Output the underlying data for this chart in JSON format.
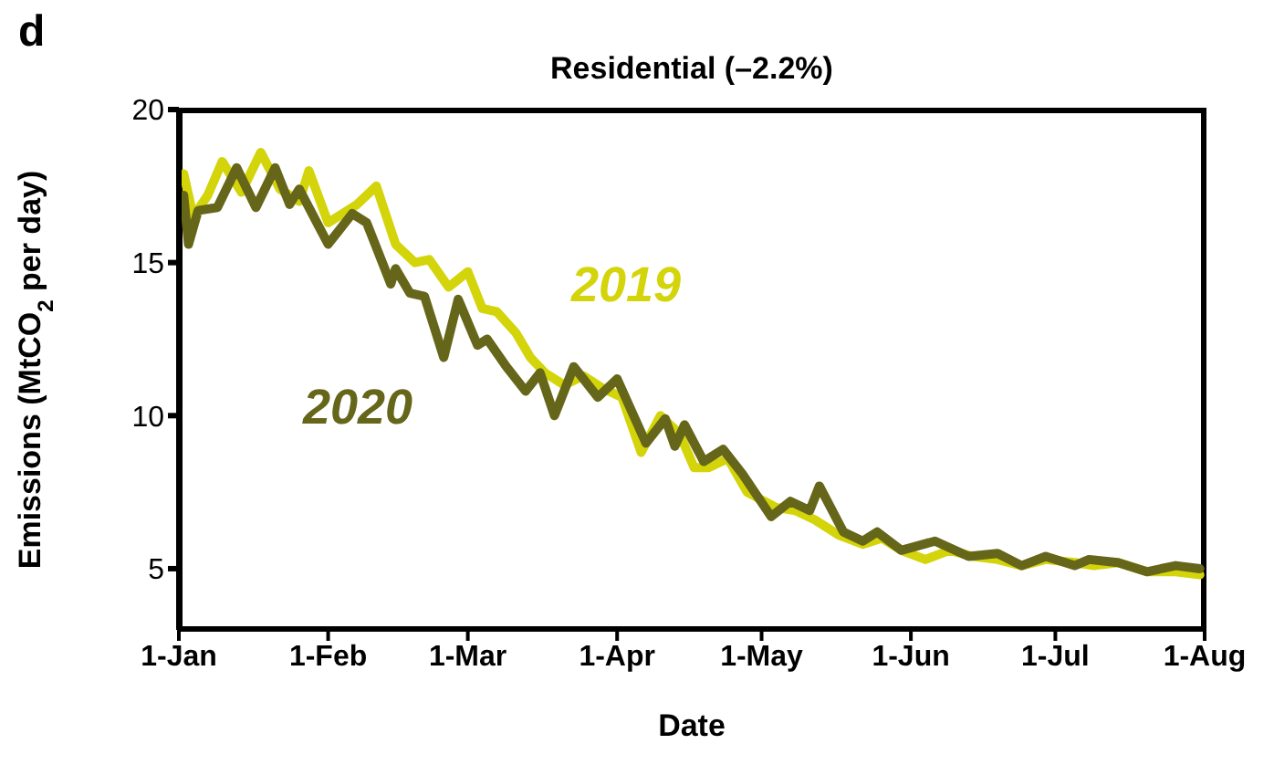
{
  "chart_data": {
    "type": "line",
    "title": "Residential (–2.2%)",
    "xlabel": "Date",
    "ylabel": "Emissions (MtCO$_{2}$ per day)",
    "annotations": [
      "d"
    ],
    "xlim": [
      "--01-01",
      "--08-01"
    ],
    "xticks": [
      {
        "value": "--01-01",
        "label": "1-Jan"
      },
      {
        "value": "--02-01",
        "label": "1-Feb"
      },
      {
        "value": "--03-01",
        "label": "1-Mar"
      },
      {
        "value": "--04-01",
        "label": "1-Apr"
      },
      {
        "value": "--05-01",
        "label": "1-May"
      },
      {
        "value": "--06-01",
        "label": "1-Jun"
      },
      {
        "value": "--07-01",
        "label": "1-Jul"
      },
      {
        "value": "--08-01",
        "label": "1-Aug"
      }
    ],
    "ylim": [
      3,
      20
    ],
    "yticks": [
      5,
      10,
      15,
      20
    ],
    "series": [
      {
        "name": "2019",
        "color": "#d4d40a",
        "x": [
          "--01-02",
          "--01-04",
          "--01-07",
          "--01-10",
          "--01-14",
          "--01-18",
          "--01-22",
          "--01-26",
          "--01-28",
          "--02-01",
          "--02-07",
          "--02-11",
          "--02-15",
          "--02-19",
          "--02-22",
          "--02-26",
          "--03-01",
          "--03-04",
          "--03-07",
          "--03-11",
          "--03-14",
          "--03-17",
          "--03-21",
          "--03-25",
          "--03-29",
          "--04-02",
          "--04-06",
          "--04-10",
          "--04-14",
          "--04-17",
          "--04-20",
          "--04-24",
          "--04-28",
          "--05-04",
          "--05-08",
          "--05-12",
          "--05-17",
          "--05-22",
          "--05-26",
          "--05-30",
          "--06-04",
          "--06-09",
          "--06-14",
          "--06-19",
          "--06-24",
          "--06-29",
          "--07-05",
          "--07-09",
          "--07-14",
          "--07-20",
          "--07-26",
          "--07-31"
        ],
        "values": [
          17.9,
          16.5,
          17.2,
          18.3,
          17.3,
          18.6,
          17.4,
          17.0,
          18.0,
          16.3,
          16.9,
          17.5,
          15.6,
          15.0,
          15.1,
          14.2,
          14.7,
          13.5,
          13.4,
          12.7,
          11.9,
          11.4,
          11.0,
          11.3,
          10.9,
          10.6,
          8.8,
          10.0,
          9.4,
          8.3,
          8.3,
          8.6,
          7.5,
          7.0,
          6.9,
          6.6,
          6.1,
          5.8,
          6.0,
          5.6,
          5.3,
          5.6,
          5.4,
          5.3,
          5.1,
          5.3,
          5.2,
          5.1,
          5.2,
          4.9,
          4.9,
          4.8
        ]
      },
      {
        "name": "2020",
        "color": "#66661a",
        "x": [
          "--01-02",
          "--01-03",
          "--01-05",
          "--01-09",
          "--01-13",
          "--01-17",
          "--01-21",
          "--01-24",
          "--01-26",
          "--02-01",
          "--02-06",
          "--02-09",
          "--02-14",
          "--02-15",
          "--02-18",
          "--02-21",
          "--02-25",
          "--02-28",
          "--03-03",
          "--03-05",
          "--03-09",
          "--03-13",
          "--03-16",
          "--03-19",
          "--03-23",
          "--03-28",
          "--04-01",
          "--04-07",
          "--04-11",
          "--04-13",
          "--04-15",
          "--04-19",
          "--04-23",
          "--04-27",
          "--05-03",
          "--05-07",
          "--05-11",
          "--05-13",
          "--05-18",
          "--05-22",
          "--05-25",
          "--05-30",
          "--06-06",
          "--06-13",
          "--06-19",
          "--06-24",
          "--06-29",
          "--07-05",
          "--07-08",
          "--07-14",
          "--07-20",
          "--07-26",
          "--07-31"
        ],
        "values": [
          17.2,
          15.6,
          16.7,
          16.8,
          18.1,
          16.8,
          18.1,
          16.9,
          17.4,
          15.6,
          16.6,
          16.3,
          14.3,
          14.8,
          14.0,
          13.9,
          11.9,
          13.8,
          12.3,
          12.5,
          11.6,
          10.8,
          11.4,
          10.0,
          11.6,
          10.6,
          11.2,
          9.1,
          9.9,
          9.0,
          9.7,
          8.5,
          8.9,
          8.1,
          6.7,
          7.2,
          6.9,
          7.7,
          6.2,
          5.9,
          6.2,
          5.6,
          5.9,
          5.4,
          5.5,
          5.1,
          5.4,
          5.1,
          5.3,
          5.2,
          4.9,
          5.1,
          5.0
        ]
      }
    ]
  }
}
